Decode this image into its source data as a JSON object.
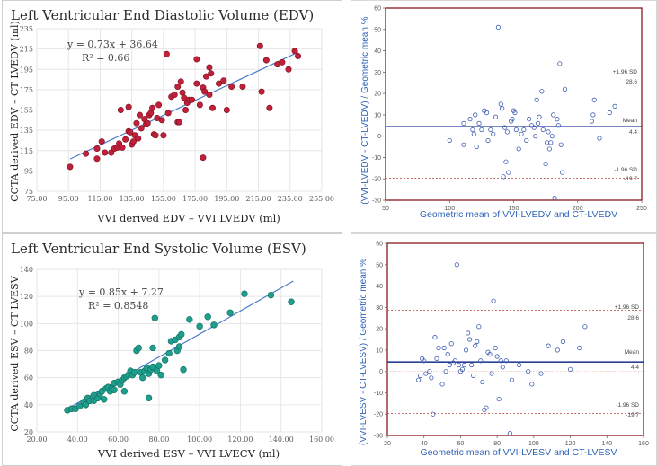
{
  "colors": {
    "edv_marker": "#c0203a",
    "edv_marker_stroke": "#7a1020",
    "esv_marker": "#1e9e8c",
    "esv_marker_stroke": "#116b5e",
    "trend_line": "#4a7bc8",
    "ba_frame": "#8b1a1a",
    "ba_mean": "#2a3f9a",
    "ba_sd": "#b5443a",
    "ba_point": "#3f5fb0",
    "ba_text": "#2e62b8",
    "grid": "#e6e6e6"
  },
  "chart_data": [
    {
      "id": "edv-scatter",
      "type": "scatter",
      "title": "Left Ventricular  End Diastolic Volume (EDV)",
      "xlabel": "VVI derived EDV – VVI LVEDV (ml)",
      "ylabel": "CCTA derived EDV – CT LVEDV (ml)",
      "xlim": [
        75,
        255
      ],
      "ylim": [
        75,
        235
      ],
      "xticks": [
        75,
        95,
        115,
        135,
        155,
        175,
        195,
        215,
        235,
        255
      ],
      "yticks": [
        75,
        95,
        115,
        135,
        155,
        175,
        195,
        215,
        235
      ],
      "tick_labels_x": [
        "75.00",
        "95.00",
        "115.00",
        "135.00",
        "155.00",
        "175.00",
        "195.00",
        "215.00",
        "235.00",
        "255.00"
      ],
      "tick_labels_y": [
        "75",
        "95",
        "115",
        "135",
        "155",
        "175",
        "195",
        "215",
        "235"
      ],
      "equation": "y = 0.73x + 36.64",
      "r2": "R² = 0.66",
      "fit": {
        "slope": 0.73,
        "intercept": 36.64,
        "x_range": [
          96,
          240
        ]
      },
      "points": [
        [
          96,
          99
        ],
        [
          106,
          112
        ],
        [
          113,
          117
        ],
        [
          113,
          107
        ],
        [
          116,
          124
        ],
        [
          118,
          113
        ],
        [
          122,
          113
        ],
        [
          124,
          117
        ],
        [
          126,
          118
        ],
        [
          127,
          122
        ],
        [
          128,
          155
        ],
        [
          129,
          118
        ],
        [
          131,
          126
        ],
        [
          133,
          134
        ],
        [
          133,
          158
        ],
        [
          134,
          133
        ],
        [
          135,
          121
        ],
        [
          136,
          124
        ],
        [
          137,
          130
        ],
        [
          138,
          142
        ],
        [
          139,
          127
        ],
        [
          140,
          150
        ],
        [
          141,
          137
        ],
        [
          143,
          146
        ],
        [
          144,
          141
        ],
        [
          145,
          142
        ],
        [
          146,
          150
        ],
        [
          147,
          152
        ],
        [
          148,
          157
        ],
        [
          149,
          131
        ],
        [
          150,
          130
        ],
        [
          151,
          147
        ],
        [
          152,
          160
        ],
        [
          154,
          145
        ],
        [
          155,
          130
        ],
        [
          157,
          210
        ],
        [
          158,
          152
        ],
        [
          160,
          168
        ],
        [
          162,
          170
        ],
        [
          164,
          178
        ],
        [
          164,
          143
        ],
        [
          165,
          143
        ],
        [
          166,
          183
        ],
        [
          167,
          172
        ],
        [
          168,
          167
        ],
        [
          169,
          155
        ],
        [
          170,
          162
        ],
        [
          171,
          165
        ],
        [
          173,
          165
        ],
        [
          176,
          181
        ],
        [
          176,
          205
        ],
        [
          178,
          160
        ],
        [
          180,
          108
        ],
        [
          180,
          177
        ],
        [
          181,
          173
        ],
        [
          182,
          188
        ],
        [
          184,
          170
        ],
        [
          184,
          197
        ],
        [
          185,
          191
        ],
        [
          186,
          157
        ],
        [
          190,
          181
        ],
        [
          193,
          184
        ],
        [
          195,
          155
        ],
        [
          198,
          178
        ],
        [
          205,
          178
        ],
        [
          216,
          218
        ],
        [
          217,
          173
        ],
        [
          220,
          204
        ],
        [
          222,
          157
        ],
        [
          227,
          200
        ],
        [
          230,
          202
        ],
        [
          234,
          195
        ],
        [
          238,
          213
        ],
        [
          240,
          208
        ]
      ]
    },
    {
      "id": "esv-scatter",
      "type": "scatter",
      "title": "Left Ventricular  End Systolic Volume (ESV)",
      "xlabel": "VVI derived ESV – VVI LVECV (ml)",
      "ylabel": "CCTA derived ESV – CT LVESV",
      "xlim": [
        20,
        160
      ],
      "ylim": [
        20,
        140
      ],
      "xticks": [
        20,
        40,
        60,
        80,
        100,
        120,
        140,
        160
      ],
      "yticks": [
        20,
        40,
        60,
        80,
        100,
        120,
        140
      ],
      "tick_labels_x": [
        "20.00",
        "40.00",
        "60.00",
        "80.00",
        "100.00",
        "120.00",
        "140.00",
        "160.00"
      ],
      "tick_labels_y": [
        "20",
        "40",
        "60",
        "80",
        "100",
        "120",
        "140"
      ],
      "equation": "y = 0.85x + 7.27",
      "r2": "R² = 0.8548",
      "fit": {
        "slope": 0.85,
        "intercept": 7.27,
        "x_range": [
          35,
          146
        ]
      },
      "points": [
        [
          35,
          36
        ],
        [
          37,
          37
        ],
        [
          39,
          37
        ],
        [
          41,
          39
        ],
        [
          43,
          42
        ],
        [
          44,
          40
        ],
        [
          45,
          45
        ],
        [
          46,
          43
        ],
        [
          48,
          43
        ],
        [
          48,
          47
        ],
        [
          50,
          45
        ],
        [
          51,
          48
        ],
        [
          52,
          50
        ],
        [
          53,
          44
        ],
        [
          54,
          52
        ],
        [
          55,
          53
        ],
        [
          56,
          50
        ],
        [
          57,
          52
        ],
        [
          58,
          51
        ],
        [
          58,
          56
        ],
        [
          60,
          57
        ],
        [
          61,
          55
        ],
        [
          62,
          58
        ],
        [
          63,
          60
        ],
        [
          63,
          50
        ],
        [
          64,
          61
        ],
        [
          65,
          62
        ],
        [
          66,
          65
        ],
        [
          67,
          62
        ],
        [
          68,
          64
        ],
        [
          69,
          80
        ],
        [
          70,
          82
        ],
        [
          71,
          64
        ],
        [
          72,
          60
        ],
        [
          73,
          65
        ],
        [
          74,
          67
        ],
        [
          75,
          45
        ],
        [
          75,
          63
        ],
        [
          76,
          66
        ],
        [
          77,
          68
        ],
        [
          77,
          82
        ],
        [
          78,
          104
        ],
        [
          79,
          65
        ],
        [
          80,
          69
        ],
        [
          81,
          62
        ],
        [
          83,
          73
        ],
        [
          85,
          78
        ],
        [
          86,
          87
        ],
        [
          88,
          88
        ],
        [
          89,
          80
        ],
        [
          90,
          90
        ],
        [
          90,
          83
        ],
        [
          91,
          92
        ],
        [
          92,
          66
        ],
        [
          95,
          103
        ],
        [
          100,
          98
        ],
        [
          104,
          105
        ],
        [
          107,
          99
        ],
        [
          115,
          108
        ],
        [
          122,
          122
        ],
        [
          135,
          121
        ],
        [
          145,
          116
        ]
      ]
    },
    {
      "id": "edv-bland-altman",
      "type": "scatter",
      "xlabel": "Geometric mean of VVI-LVEDV and CT-LVEDV",
      "ylabel": "(VVI-LVEDV - CT-LVEDV) / Geometric mean %",
      "xlim": [
        50,
        250
      ],
      "ylim": [
        -30,
        60
      ],
      "xticks": [
        50,
        100,
        150,
        200,
        250
      ],
      "yticks": [
        -30,
        -20,
        -10,
        0,
        10,
        20,
        30,
        40,
        50,
        60
      ],
      "mean": 4.4,
      "upper_loa": 28.6,
      "lower_loa": -19.7,
      "labels": {
        "upper": "+1.96 SD",
        "upper_val": "28.6",
        "mean": "Mean",
        "mean_val": "4.4",
        "lower": "-1.96 SD",
        "lower_val": "-19.7"
      },
      "points": [
        [
          100,
          -2
        ],
        [
          111,
          6
        ],
        [
          111,
          -4
        ],
        [
          116,
          8
        ],
        [
          118,
          3
        ],
        [
          119,
          1
        ],
        [
          120,
          10
        ],
        [
          121,
          -5
        ],
        [
          123,
          6
        ],
        [
          125,
          3
        ],
        [
          127,
          12
        ],
        [
          129,
          11
        ],
        [
          130,
          -2
        ],
        [
          132,
          3
        ],
        [
          134,
          1
        ],
        [
          136,
          9
        ],
        [
          138,
          51
        ],
        [
          140,
          15
        ],
        [
          141,
          13
        ],
        [
          142,
          -19
        ],
        [
          143,
          4
        ],
        [
          144,
          -12
        ],
        [
          145,
          2
        ],
        [
          146,
          -17
        ],
        [
          148,
          7
        ],
        [
          149,
          8
        ],
        [
          150,
          12
        ],
        [
          151,
          11
        ],
        [
          152,
          3
        ],
        [
          154,
          -6
        ],
        [
          156,
          1
        ],
        [
          158,
          3
        ],
        [
          160,
          -2
        ],
        [
          162,
          8
        ],
        [
          164,
          5
        ],
        [
          166,
          4
        ],
        [
          167,
          0
        ],
        [
          168,
          17
        ],
        [
          169,
          6
        ],
        [
          170,
          9
        ],
        [
          172,
          21
        ],
        [
          173,
          3
        ],
        [
          175,
          -13
        ],
        [
          176,
          -3
        ],
        [
          177,
          2
        ],
        [
          178,
          -6
        ],
        [
          179,
          -3
        ],
        [
          180,
          0
        ],
        [
          181,
          10
        ],
        [
          182,
          -29
        ],
        [
          184,
          8
        ],
        [
          185,
          5
        ],
        [
          186,
          34
        ],
        [
          187,
          -4
        ],
        [
          188,
          -17
        ],
        [
          190,
          22
        ],
        [
          211,
          7
        ],
        [
          212,
          10
        ],
        [
          213,
          17
        ],
        [
          217,
          -1
        ],
        [
          225,
          11
        ],
        [
          229,
          14
        ]
      ]
    },
    {
      "id": "esv-bland-altman",
      "type": "scatter",
      "xlabel": "Geometric mean of VVI-LVESV and CT-LVESV",
      "ylabel": "(VVI-LVESV - CT-LVESV) / Geometric mean %",
      "xlim": [
        20,
        160
      ],
      "ylim": [
        -30,
        60
      ],
      "xticks": [
        20,
        40,
        60,
        80,
        100,
        120,
        140,
        160
      ],
      "yticks": [
        -30,
        -20,
        -10,
        0,
        10,
        20,
        30,
        40,
        50,
        60
      ],
      "mean": 4.4,
      "upper_loa": 28.6,
      "lower_loa": -19.7,
      "labels": {
        "upper": "+1.96 SD",
        "upper_val": "28.6",
        "mean": "Mean",
        "mean_val": "4.4",
        "lower": "-1.96 SD",
        "lower_val": "-19.7"
      },
      "points": [
        [
          37,
          -4
        ],
        [
          38,
          -2
        ],
        [
          39,
          6
        ],
        [
          40,
          5
        ],
        [
          41,
          -1
        ],
        [
          43,
          0
        ],
        [
          44,
          -3
        ],
        [
          45,
          -20
        ],
        [
          46,
          16
        ],
        [
          47,
          6
        ],
        [
          48,
          11
        ],
        [
          50,
          -6
        ],
        [
          51,
          11
        ],
        [
          52,
          0
        ],
        [
          53,
          8
        ],
        [
          54,
          3
        ],
        [
          55,
          13
        ],
        [
          56,
          4
        ],
        [
          57,
          5
        ],
        [
          58,
          50
        ],
        [
          59,
          3
        ],
        [
          60,
          0
        ],
        [
          61,
          1
        ],
        [
          62,
          3
        ],
        [
          63,
          10
        ],
        [
          64,
          18
        ],
        [
          65,
          15
        ],
        [
          66,
          3
        ],
        [
          67,
          -2
        ],
        [
          68,
          12
        ],
        [
          69,
          14
        ],
        [
          70,
          21
        ],
        [
          71,
          5
        ],
        [
          72,
          -5
        ],
        [
          73,
          -18
        ],
        [
          74,
          -17
        ],
        [
          75,
          9
        ],
        [
          76,
          8
        ],
        [
          77,
          -1
        ],
        [
          78,
          33
        ],
        [
          79,
          11
        ],
        [
          80,
          7
        ],
        [
          81,
          -13
        ],
        [
          82,
          5
        ],
        [
          83,
          2
        ],
        [
          85,
          5
        ],
        [
          87,
          -29
        ],
        [
          88,
          -4
        ],
        [
          92,
          3
        ],
        [
          97,
          0
        ],
        [
          99,
          -6
        ],
        [
          104,
          -1
        ],
        [
          108,
          12
        ],
        [
          113,
          10
        ],
        [
          116,
          14
        ],
        [
          120,
          1
        ],
        [
          125,
          11
        ],
        [
          128,
          21
        ]
      ]
    }
  ]
}
